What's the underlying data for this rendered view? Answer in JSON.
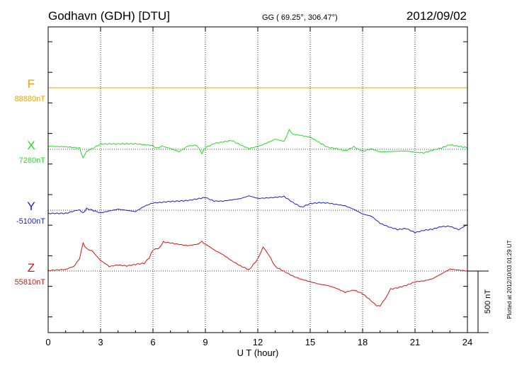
{
  "header": {
    "station": "Godhavn (GDH)  [DTU]",
    "coords": "GG ( 69.25°, 306.47°)",
    "date": "2012/09/02"
  },
  "plotted_note": "Plotted at 2012/10/03 01:29 UT",
  "scale_label": "500 nT",
  "colors": {
    "F": "#f0a000",
    "X": "#22dd22",
    "Y": "#1a1ad8",
    "Z": "#e01010",
    "axis": "#000000"
  },
  "chart_data": {
    "type": "line",
    "xlabel": "U T (hour)",
    "xlim": [
      0,
      24
    ],
    "xticks": [
      0,
      3,
      6,
      9,
      12,
      15,
      18,
      21,
      24
    ],
    "xtick_labels": [
      "0",
      "3",
      "6",
      "9",
      "12",
      "15",
      "18",
      "21",
      "24"
    ],
    "scale_bar_nT": 500,
    "grid": true,
    "series": [
      {
        "name": "F",
        "baseline_label": "88880nT",
        "x": [
          0,
          24
        ],
        "offset_nT": [
          0,
          0
        ]
      },
      {
        "name": "X",
        "baseline_label": "7280nT",
        "x": [
          0,
          1,
          1.8,
          2.0,
          2.2,
          2.5,
          3,
          4,
          5,
          6,
          6.2,
          6.5,
          7,
          7.5,
          8,
          8.5,
          8.8,
          9,
          9.5,
          10,
          10.5,
          11,
          11.5,
          12,
          12.5,
          13,
          13.5,
          13.8,
          14,
          14.5,
          15,
          15.5,
          16,
          16.5,
          17,
          17.5,
          18,
          18.5,
          19,
          19.5,
          20,
          20.5,
          21,
          21.5,
          22,
          22.5,
          23,
          23.5,
          24
        ],
        "offset_nT": [
          25,
          25,
          10,
          -70,
          -20,
          5,
          40,
          40,
          45,
          35,
          5,
          30,
          10,
          -20,
          25,
          30,
          -30,
          10,
          45,
          60,
          75,
          40,
          10,
          25,
          50,
          80,
          60,
          160,
          120,
          110,
          100,
          60,
          20,
          10,
          -10,
          20,
          -20,
          0,
          -25,
          -20,
          -15,
          -10,
          -20,
          -25,
          -5,
          10,
          35,
          20,
          10
        ]
      },
      {
        "name": "Y",
        "baseline_label": "-5100nT",
        "x": [
          0,
          1,
          1.8,
          2.0,
          2.2,
          3,
          4,
          5,
          5.5,
          6,
          7,
          8,
          9,
          9.5,
          10,
          11,
          11.5,
          12,
          13,
          13.5,
          14,
          14.5,
          15,
          15.5,
          16,
          17,
          17.5,
          18,
          18.5,
          19,
          19.5,
          20,
          20.5,
          21,
          21.5,
          22,
          22.5,
          23,
          23.5,
          24
        ],
        "offset_nT": [
          -30,
          -25,
          0,
          -20,
          10,
          -20,
          5,
          -15,
          30,
          60,
          75,
          80,
          100,
          70,
          70,
          95,
          120,
          100,
          105,
          110,
          60,
          20,
          50,
          60,
          60,
          40,
          10,
          -30,
          -50,
          -110,
          -140,
          -160,
          -150,
          -180,
          -160,
          -150,
          -130,
          -130,
          -160,
          -120
        ]
      },
      {
        "name": "Z",
        "baseline_label": "55810nT",
        "x": [
          0,
          1,
          1.5,
          1.8,
          2.0,
          2.2,
          2.5,
          3,
          3.5,
          4,
          4.5,
          5,
          5.5,
          5.8,
          6,
          6.3,
          6.6,
          7,
          7.5,
          8,
          8.5,
          8.8,
          9,
          9.5,
          10,
          10.5,
          11,
          11.5,
          12,
          12.3,
          12.6,
          13,
          13.5,
          14,
          14.5,
          15,
          15.5,
          16,
          16.5,
          17,
          17.5,
          18,
          18.5,
          18.8,
          19,
          19.3,
          19.6,
          20,
          20.5,
          21,
          21.5,
          22,
          22.5,
          23,
          23.5,
          24
        ],
        "offset_nT": [
          0,
          10,
          40,
          100,
          230,
          180,
          170,
          90,
          40,
          50,
          40,
          50,
          60,
          110,
          170,
          180,
          240,
          230,
          220,
          210,
          220,
          240,
          220,
          170,
          130,
          80,
          40,
          10,
          100,
          190,
          140,
          40,
          0,
          -40,
          -70,
          -90,
          -110,
          -120,
          -140,
          -170,
          -150,
          -180,
          -240,
          -280,
          -280,
          -220,
          -150,
          -140,
          -120,
          -90,
          -80,
          -60,
          -20,
          20,
          10,
          0
        ]
      }
    ]
  }
}
